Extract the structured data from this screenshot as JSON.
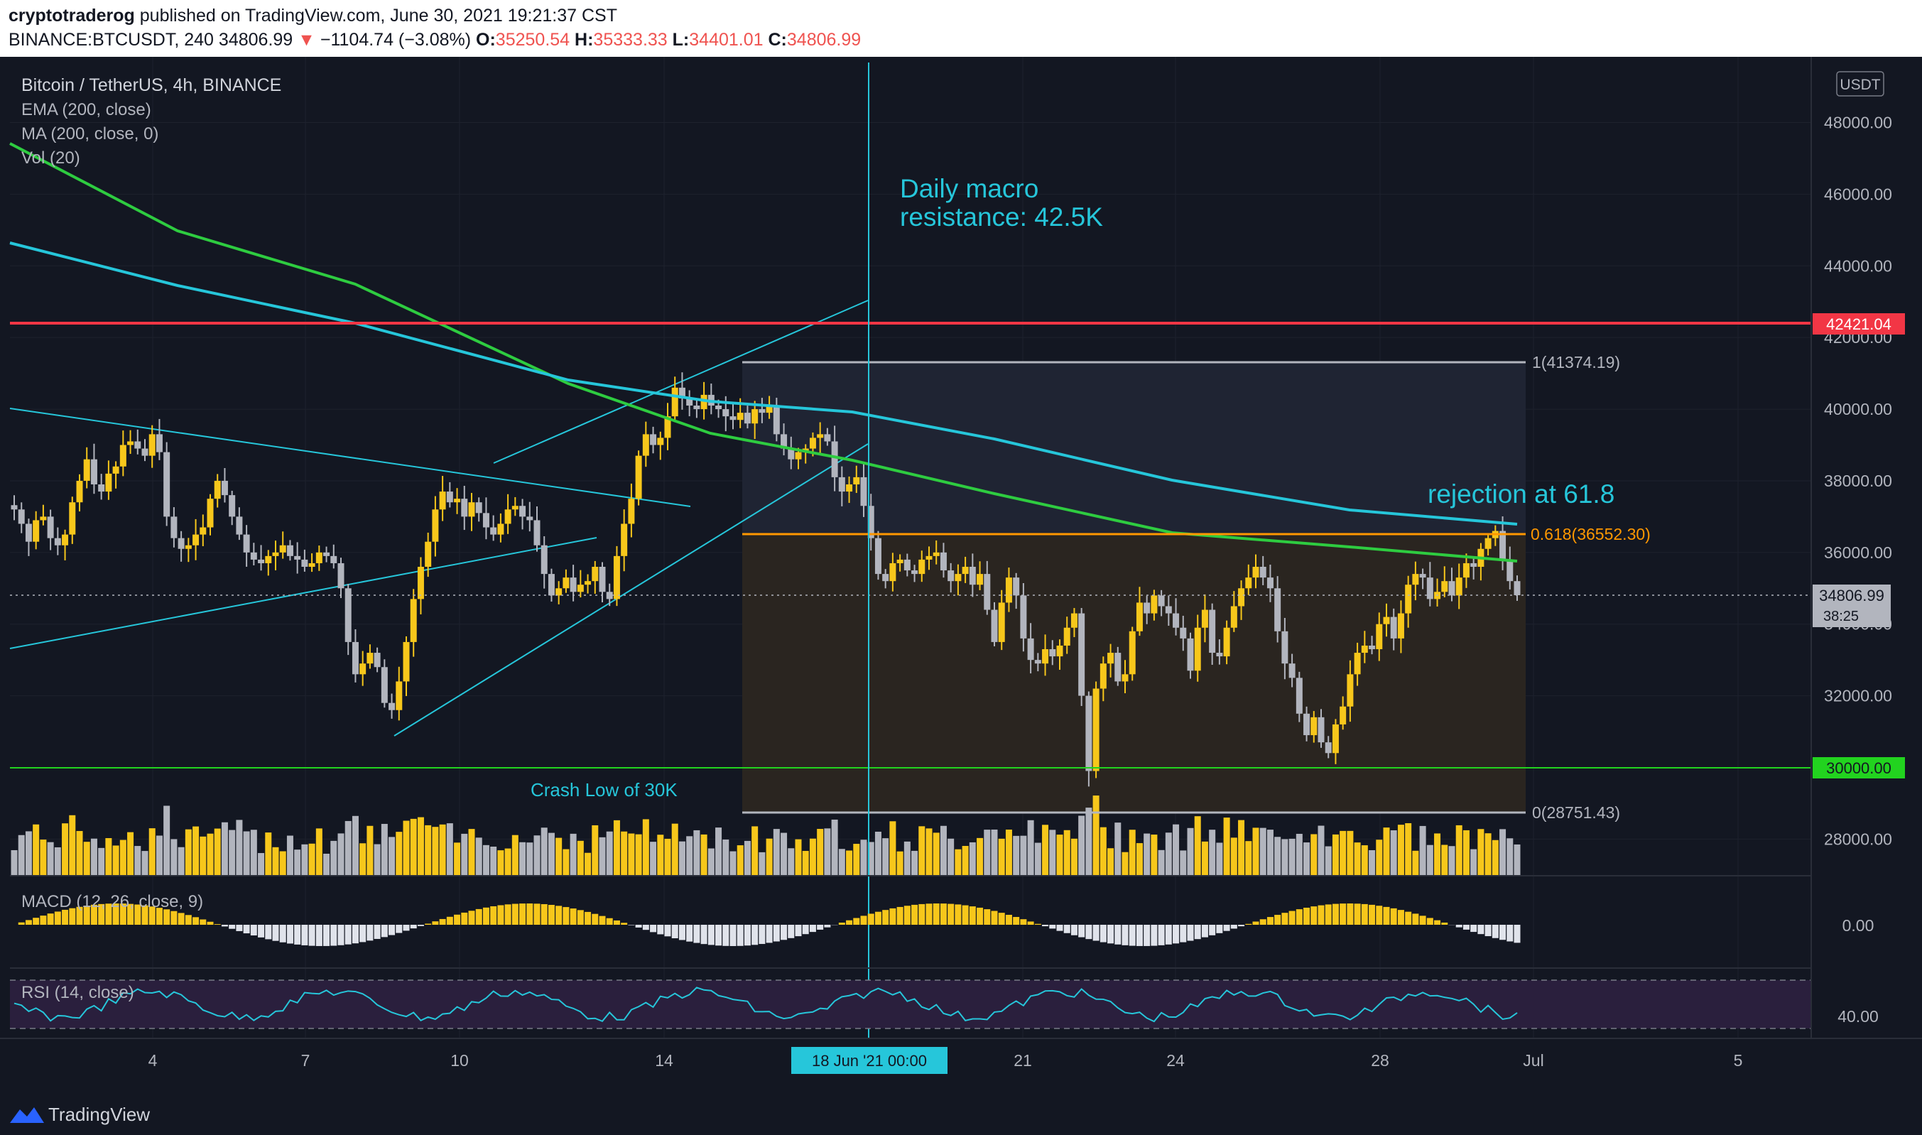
{
  "header": {
    "author": "cryptotraderog",
    "published": "published on TradingView.com, June 30, 2021 19:21:37 CST",
    "symbol": "BINANCE:BTCUSDT, 240",
    "last": "34806.99",
    "change": "−1104.74 (−3.08%)",
    "o_label": "O:",
    "o": "35250.54",
    "h_label": "H:",
    "h": "35333.33",
    "l_label": "L:",
    "l": "34401.01",
    "c_label": "C:",
    "c": "34806.99"
  },
  "legend": {
    "title": "Bitcoin / TetherUS, 4h, BINANCE",
    "ema": "EMA (200, close)",
    "ma": "MA (200, close, 0)",
    "vol": "Vol (20)",
    "macd": "MACD (12, 26, close, 9)",
    "rsi": "RSI (14, close)"
  },
  "currency_badge": "USDT",
  "annotations": {
    "macro_line1": "Daily macro",
    "macro_line2": "resistance: 42.5K",
    "rejection": "rejection at 61.8",
    "crash_low": "Crash Low of 30K",
    "fib_1": "1(41374.19)",
    "fib_618": "0.618(36552.30)",
    "fib_0": "0(28751.43)"
  },
  "price_labels": {
    "resistance": "42421.04",
    "support": "30000.00",
    "current": "34806.99",
    "countdown": "38:25"
  },
  "crosshair_date": "18 Jun '21   00:00",
  "footer": {
    "brand": "TradingView"
  },
  "colors": {
    "up": "#f7c71b",
    "down": "#b2b5be",
    "ema": "#26c6da",
    "ma": "#2ecc40",
    "resistance": "#f23645",
    "support": "#22d31f",
    "fib618": "#ff9800",
    "text_accent": "#26c6da",
    "bg": "#131722"
  },
  "chart_data": {
    "type": "candlestick",
    "title": "Bitcoin / TetherUS, 4h, BINANCE",
    "y_axis": {
      "ticks": [
        "48000.00",
        "46000.00",
        "44000.00",
        "42000.00",
        "40000.00",
        "38000.00",
        "36000.00",
        "34000.00",
        "32000.00",
        "30000.00",
        "28000.00"
      ],
      "range": [
        27000,
        49000
      ]
    },
    "x_axis": {
      "ticks": [
        "4",
        "7",
        "10",
        "14",
        "21",
        "24",
        "28",
        "Jul",
        "5"
      ]
    },
    "macd_axis": {
      "ticks": [
        "0.00"
      ]
    },
    "rsi_axis": {
      "ticks": [
        "40.00"
      ]
    },
    "horizontal_lines": [
      {
        "label": "resistance",
        "value": 42421.04
      },
      {
        "label": "support",
        "value": 30000.0
      }
    ],
    "fib_levels": [
      {
        "label": "1",
        "value": 41374.19
      },
      {
        "label": "0.618",
        "value": 36552.3
      },
      {
        "label": "0",
        "value": 28751.43
      }
    ],
    "closes": [
      37200,
      36800,
      36300,
      36900,
      37000,
      36400,
      36200,
      36500,
      37400,
      38000,
      38600,
      37900,
      37700,
      38200,
      38400,
      39000,
      39100,
      38900,
      38700,
      39300,
      38800,
      37000,
      36400,
      36100,
      36200,
      36500,
      36700,
      37500,
      38000,
      37600,
      37000,
      36500,
      36000,
      35800,
      35700,
      35900,
      36000,
      36200,
      35900,
      35800,
      35600,
      35700,
      36000,
      35900,
      35700,
      35000,
      33500,
      32600,
      32900,
      33200,
      32800,
      31800,
      31600,
      32400,
      33500,
      34700,
      35600,
      36300,
      37200,
      37700,
      37400,
      37500,
      37000,
      37400,
      37100,
      36700,
      36500,
      36800,
      37200,
      37300,
      37000,
      36900,
      36200,
      35400,
      34800,
      35000,
      35300,
      34900,
      35100,
      35200,
      35600,
      34900,
      34700,
      35900,
      36800,
      37500,
      38700,
      39300,
      39000,
      39200,
      39800,
      40600,
      40300,
      40100,
      40000,
      40400,
      40100,
      40000,
      39800,
      39700,
      39900,
      39600,
      40000,
      39900,
      40100,
      39300,
      38900,
      38600,
      38800,
      38900,
      39200,
      39300,
      39100,
      38100,
      37700,
      37900,
      38100,
      37300,
      36400,
      35400,
      35200,
      35700,
      35800,
      35500,
      35400,
      35800,
      35900,
      36000,
      35500,
      35200,
      35400,
      35600,
      35100,
      35400,
      34400,
      33500,
      34600,
      35300,
      34800,
      33600,
      33000,
      32900,
      33300,
      33100,
      33400,
      33900,
      34300,
      32000,
      29900,
      32200,
      32900,
      33200,
      32400,
      32600,
      33800,
      34600,
      34300,
      34800,
      34500,
      34300,
      33900,
      33600,
      32700,
      33900,
      34400,
      33200,
      33100,
      33900,
      34500,
      35000,
      35300,
      35600,
      35300,
      35000,
      33800,
      32900,
      32500,
      31500,
      30900,
      31400,
      30700,
      30400,
      31200,
      31700,
      32600,
      33200,
      33400,
      33300,
      34000,
      34200,
      33600,
      34300,
      35100,
      35400,
      35300,
      34700,
      34900,
      35200,
      34800,
      35300,
      35700,
      35600,
      36100,
      36400,
      36600,
      35800,
      35200,
      34806.99
    ]
  }
}
